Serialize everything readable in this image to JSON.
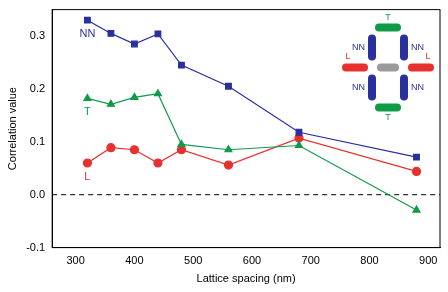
{
  "chart_data": {
    "type": "line",
    "x_label": "Lattice spacing (nm)",
    "y_label": "Correlation value",
    "x": [
      320,
      360,
      400,
      440,
      480,
      560,
      680,
      880
    ],
    "series": [
      {
        "name": "NN",
        "color": "#2a2f9e",
        "marker": "square",
        "values": [
          0.33,
          0.305,
          0.285,
          0.304,
          0.245,
          0.205,
          0.118,
          0.071
        ]
      },
      {
        "name": "T",
        "color": "#0f9a48",
        "marker": "triangle",
        "values": [
          0.182,
          0.171,
          0.184,
          0.191,
          0.095,
          0.085,
          0.093,
          -0.029
        ]
      },
      {
        "name": "L",
        "color": "#e8312f",
        "marker": "circle",
        "values": [
          0.06,
          0.089,
          0.085,
          0.06,
          0.085,
          0.056,
          0.107,
          0.044
        ]
      }
    ],
    "xlim": [
      260,
      920
    ],
    "xticks": [
      300,
      400,
      500,
      600,
      700,
      800,
      900
    ],
    "ylim": [
      -0.1,
      0.35
    ],
    "yticks": [
      -0.1,
      {
        "value": 0,
        "label": "0.0"
      },
      0.1,
      0.2,
      0.3
    ],
    "reference_lines": [
      {
        "y": 0,
        "line_style": "dashed"
      }
    ],
    "grid": false,
    "legend": false
  }
}
